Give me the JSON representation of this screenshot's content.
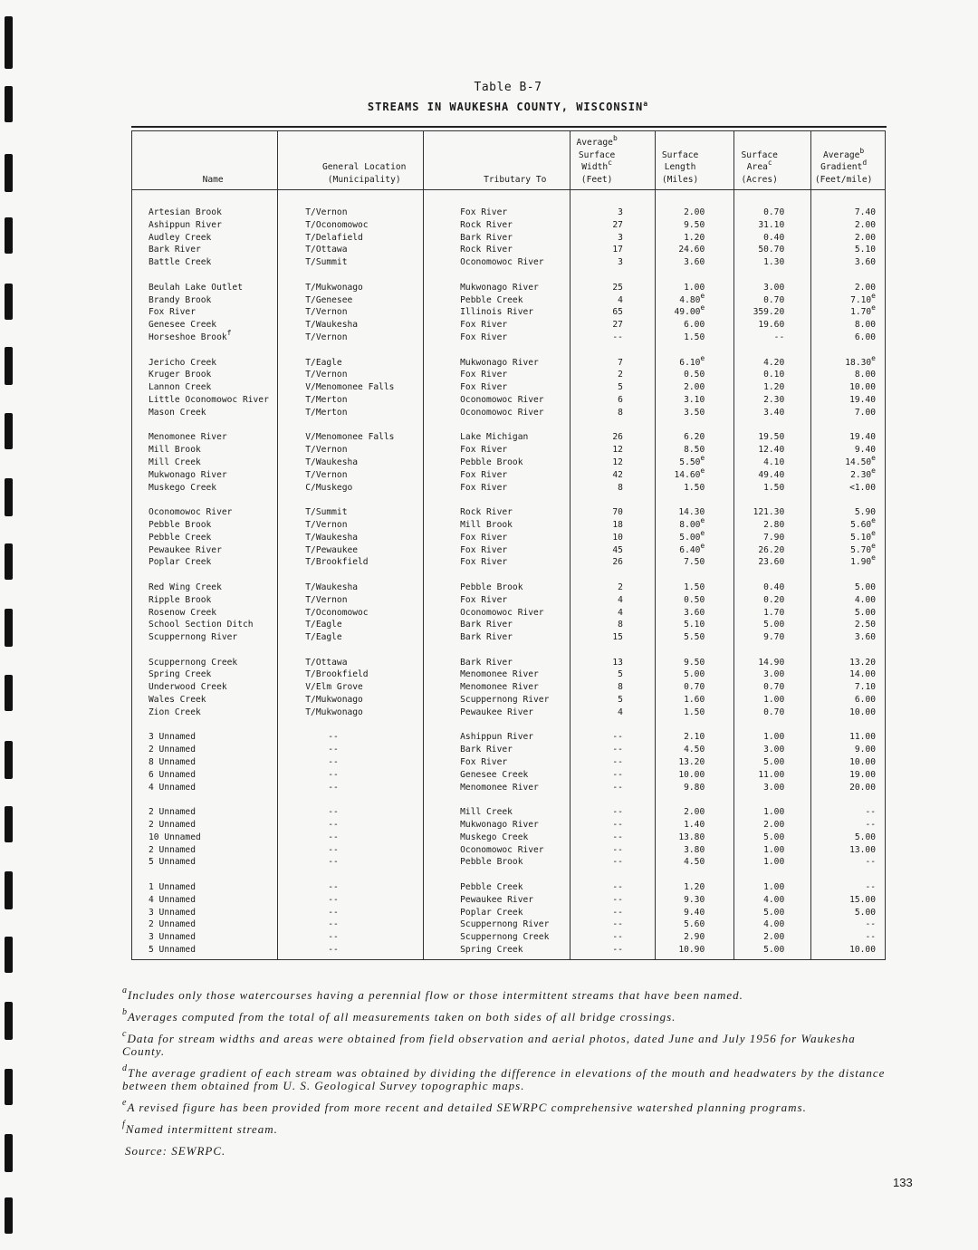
{
  "title": "Table B-7",
  "subtitle": "STREAMS IN WAUKESHA COUNTY, WISCONSIN",
  "subtitle_sup": "a",
  "columns": [
    {
      "lines": [
        "Name"
      ]
    },
    {
      "lines": [
        "General Location",
        "(Municipality)"
      ]
    },
    {
      "lines": [
        "Tributary To"
      ]
    },
    {
      "lines": [
        "Average^b",
        "Surface",
        "Width^c",
        "(Feet)"
      ]
    },
    {
      "lines": [
        "Surface",
        "Length",
        "(Miles)"
      ]
    },
    {
      "lines": [
        "Surface",
        "Area^c",
        "(Acres)"
      ]
    },
    {
      "lines": [
        "Average^b",
        "Gradient^d",
        "(Feet/mile)"
      ]
    }
  ],
  "groups": [
    [
      [
        "Artesian Brook",
        "T/Vernon",
        "Fox River",
        "3",
        "2.00",
        "0.70",
        "7.40"
      ],
      [
        "Ashippun River",
        "T/Oconomowoc",
        "Rock River",
        "27",
        "9.50",
        "31.10",
        "2.00"
      ],
      [
        "Audley Creek",
        "T/Delafield",
        "Bark River",
        "3",
        "1.20",
        "0.40",
        "2.00"
      ],
      [
        "Bark River",
        "T/Ottawa",
        "Rock River",
        "17",
        "24.60",
        "50.70",
        "5.10"
      ],
      [
        "Battle Creek",
        "T/Summit",
        "Oconomowoc River",
        "3",
        "3.60",
        "1.30",
        "3.60"
      ]
    ],
    [
      [
        "Beulah Lake Outlet",
        "T/Mukwonago",
        "Mukwonago River",
        "25",
        "1.00",
        "3.00",
        "2.00"
      ],
      [
        "Brandy Brook",
        "T/Genesee",
        "Pebble Creek",
        "4",
        "4.80^e",
        "0.70",
        "7.10^e"
      ],
      [
        "Fox River",
        "T/Vernon",
        "Illinois River",
        "65",
        "49.00^e",
        "359.20",
        "1.70^e"
      ],
      [
        "Genesee Creek",
        "T/Waukesha",
        "Fox River",
        "27",
        "6.00",
        "19.60",
        "8.00"
      ],
      [
        "Horseshoe Brook^f",
        "T/Vernon",
        "Fox River",
        "--",
        "1.50",
        "--",
        "6.00"
      ]
    ],
    [
      [
        "Jericho Creek",
        "T/Eagle",
        "Mukwonago River",
        "7",
        "6.10^e",
        "4.20",
        "18.30^e"
      ],
      [
        "Kruger Brook",
        "T/Vernon",
        "Fox River",
        "2",
        "0.50",
        "0.10",
        "8.00"
      ],
      [
        "Lannon Creek",
        "V/Menomonee Falls",
        "Fox River",
        "5",
        "2.00",
        "1.20",
        "10.00"
      ],
      [
        "Little Oconomowoc River",
        "T/Merton",
        "Oconomowoc River",
        "6",
        "3.10",
        "2.30",
        "19.40"
      ],
      [
        "Mason Creek",
        "T/Merton",
        "Oconomowoc River",
        "8",
        "3.50",
        "3.40",
        "7.00"
      ]
    ],
    [
      [
        "Menomonee River",
        "V/Menomonee Falls",
        "Lake Michigan",
        "26",
        "6.20",
        "19.50",
        "19.40"
      ],
      [
        "Mill Brook",
        "T/Vernon",
        "Fox River",
        "12",
        "8.50",
        "12.40",
        "9.40"
      ],
      [
        "Mill Creek",
        "T/Waukesha",
        "Pebble Brook",
        "12",
        "5.50^e",
        "4.10",
        "14.50^e"
      ],
      [
        "Mukwonago River",
        "T/Vernon",
        "Fox River",
        "42",
        "14.60^e",
        "49.40",
        "2.30^e"
      ],
      [
        "Muskego Creek",
        "C/Muskego",
        "Fox River",
        "8",
        "1.50",
        "1.50",
        "<1.00"
      ]
    ],
    [
      [
        "Oconomowoc River",
        "T/Summit",
        "Rock River",
        "70",
        "14.30",
        "121.30",
        "5.90"
      ],
      [
        "Pebble Brook",
        "T/Vernon",
        "Mill Brook",
        "18",
        "8.00^e",
        "2.80",
        "5.60^e"
      ],
      [
        "Pebble Creek",
        "T/Waukesha",
        "Fox River",
        "10",
        "5.00^e",
        "7.90",
        "5.10^e"
      ],
      [
        "Pewaukee River",
        "T/Pewaukee",
        "Fox River",
        "45",
        "6.40^e",
        "26.20",
        "5.70^e"
      ],
      [
        "Poplar Creek",
        "T/Brookfield",
        "Fox River",
        "26",
        "7.50",
        "23.60",
        "1.90^e"
      ]
    ],
    [
      [
        "Red Wing Creek",
        "T/Waukesha",
        "Pebble Brook",
        "2",
        "1.50",
        "0.40",
        "5.00"
      ],
      [
        "Ripple Brook",
        "T/Vernon",
        "Fox River",
        "4",
        "0.50",
        "0.20",
        "4.00"
      ],
      [
        "Rosenow Creek",
        "T/Oconomowoc",
        "Oconomowoc River",
        "4",
        "3.60",
        "1.70",
        "5.00"
      ],
      [
        "School Section Ditch",
        "T/Eagle",
        "Bark River",
        "8",
        "5.10",
        "5.00",
        "2.50"
      ],
      [
        "Scuppernong River",
        "T/Eagle",
        "Bark River",
        "15",
        "5.50",
        "9.70",
        "3.60"
      ]
    ],
    [
      [
        "Scuppernong Creek",
        "T/Ottawa",
        "Bark River",
        "13",
        "9.50",
        "14.90",
        "13.20"
      ],
      [
        "Spring Creek",
        "T/Brookfield",
        "Menomonee River",
        "5",
        "5.00",
        "3.00",
        "14.00"
      ],
      [
        "Underwood Creek",
        "V/Elm Grove",
        "Menomonee River",
        "8",
        "0.70",
        "0.70",
        "7.10"
      ],
      [
        "Wales Creek",
        "T/Mukwonago",
        "Scuppernong River",
        "5",
        "1.60",
        "1.00",
        "6.00"
      ],
      [
        "Zion Creek",
        "T/Mukwonago",
        "Pewaukee River",
        "4",
        "1.50",
        "0.70",
        "10.00"
      ]
    ],
    [
      [
        "3 Unnamed",
        "--",
        "Ashippun River",
        "--",
        "2.10",
        "1.00",
        "11.00"
      ],
      [
        "2 Unnamed",
        "--",
        "Bark River",
        "--",
        "4.50",
        "3.00",
        "9.00"
      ],
      [
        "8 Unnamed",
        "--",
        "Fox River",
        "--",
        "13.20",
        "5.00",
        "10.00"
      ],
      [
        "6 Unnamed",
        "--",
        "Genesee Creek",
        "--",
        "10.00",
        "11.00",
        "19.00"
      ],
      [
        "4 Unnamed",
        "--",
        "Menomonee River",
        "--",
        "9.80",
        "3.00",
        "20.00"
      ]
    ],
    [
      [
        "2 Unnamed",
        "--",
        "Mill Creek",
        "--",
        "2.00",
        "1.00",
        "--"
      ],
      [
        "2 Unnamed",
        "--",
        "Mukwonago River",
        "--",
        "1.40",
        "2.00",
        "--"
      ],
      [
        "10 Unnamed",
        "--",
        "Muskego Creek",
        "--",
        "13.80",
        "5.00",
        "5.00"
      ],
      [
        "2 Unnamed",
        "--",
        "Oconomowoc River",
        "--",
        "3.80",
        "1.00",
        "13.00"
      ],
      [
        "5 Unnamed",
        "--",
        "Pebble Brook",
        "--",
        "4.50",
        "1.00",
        "--"
      ]
    ],
    [
      [
        "1 Unnamed",
        "--",
        "Pebble Creek",
        "--",
        "1.20",
        "1.00",
        "--"
      ],
      [
        "4 Unnamed",
        "--",
        "Pewaukee River",
        "--",
        "9.30",
        "4.00",
        "15.00"
      ],
      [
        "3 Unnamed",
        "--",
        "Poplar Creek",
        "--",
        "9.40",
        "5.00",
        "5.00"
      ],
      [
        "2 Unnamed",
        "--",
        "Scuppernong River",
        "--",
        "5.60",
        "4.00",
        "--"
      ],
      [
        "3 Unnamed",
        "--",
        "Scuppernong Creek",
        "--",
        "2.90",
        "2.00",
        "--"
      ],
      [
        "5 Unnamed",
        "--",
        "Spring Creek",
        "--",
        "10.90",
        "5.00",
        "10.00"
      ]
    ]
  ],
  "footnotes": [
    {
      "mark": "a",
      "text": "Includes only those watercourses having a perennial flow or those intermittent streams that have been named."
    },
    {
      "mark": "b",
      "text": "Averages computed from the total of all measurements taken on both sides of all bridge crossings."
    },
    {
      "mark": "c",
      "text": "Data for stream widths and areas were obtained from field observation and aerial photos, dated June and July 1956 for Waukesha County."
    },
    {
      "mark": "d",
      "text": "The average gradient of each stream was obtained by dividing the difference in elevations of the mouth and headwaters by the distance between them obtained from U. S. Geological Survey topographic maps."
    },
    {
      "mark": "e",
      "text": "A revised figure has been provided from more recent and detailed SEWRPC comprehensive watershed planning programs."
    },
    {
      "mark": "f",
      "text": "Named intermittent stream."
    }
  ],
  "source": "Source:   SEWRPC.",
  "page_number": "133"
}
